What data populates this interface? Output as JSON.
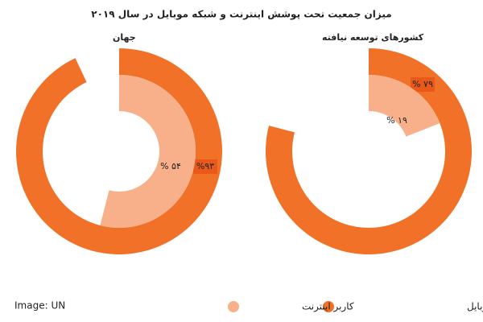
{
  "chart_data": {
    "type": "radial_bar",
    "title": "میزان جمعیت تحت پوشش اینترنت و شبکه موبایل در سال ۲۰۱۹",
    "categories": [
      "جهان",
      "کشورهای توسعه نیافته"
    ],
    "series": [
      {
        "name": "میزان پوشش شبکه موبایل",
        "color": "#f07127",
        "values": [
          93,
          79
        ],
        "value_labels": [
          "%۹۳",
          "% ۷۹"
        ]
      },
      {
        "name": "کاربر اینترنت",
        "color": "#f8b08a",
        "values": [
          54,
          19
        ],
        "value_labels": [
          "% ۵۴",
          "% ۱۹"
        ]
      }
    ],
    "source": "Image: UN"
  }
}
